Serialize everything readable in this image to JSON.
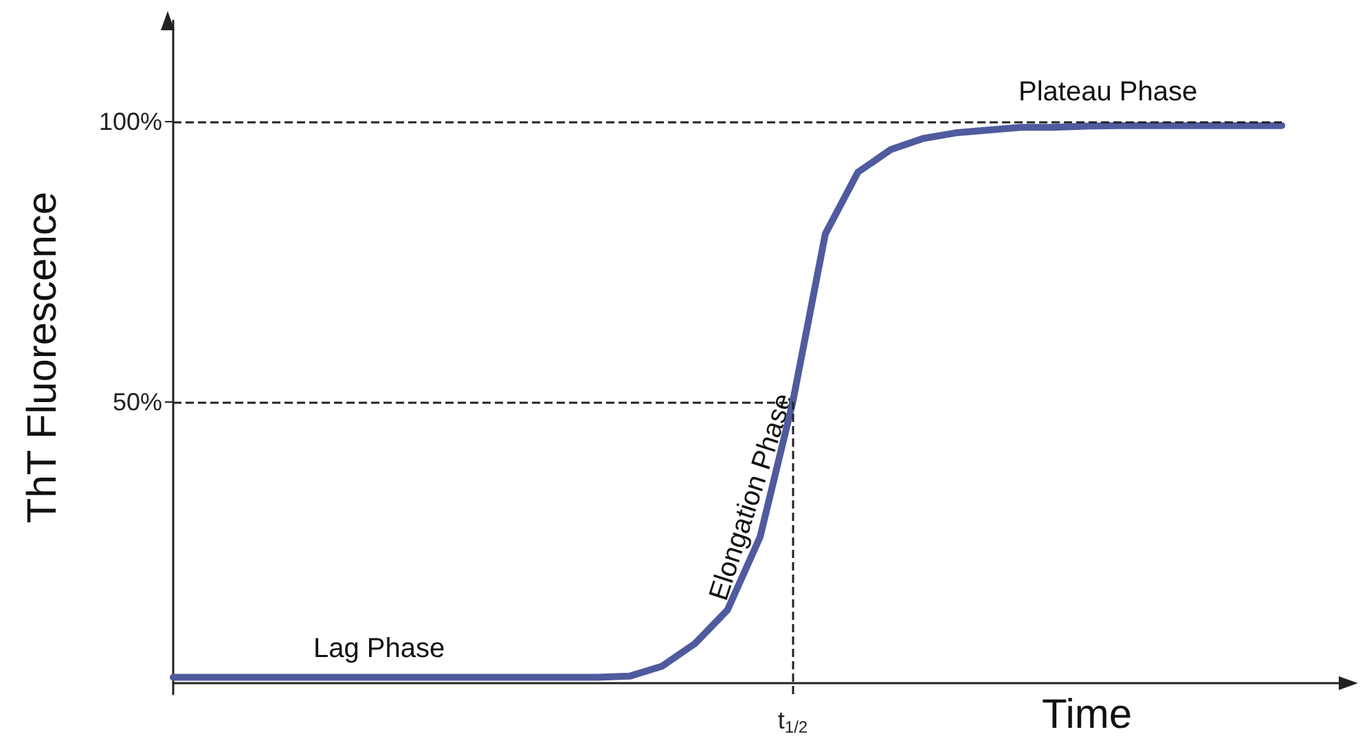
{
  "chart_data": {
    "type": "line",
    "xlabel": "Time",
    "ylabel": "ThT Fluorescence",
    "categories": [
      null,
      null,
      null,
      null,
      null,
      null,
      null,
      null,
      null,
      null,
      null,
      null,
      null,
      null,
      null,
      null,
      null,
      null,
      null,
      "t$_{1/2}$",
      null,
      null,
      null,
      null,
      null,
      null,
      null,
      null,
      null,
      null,
      null,
      null,
      null,
      null,
      null,
      null,
      null
    ],
    "series": [
      {
        "color": "#4f5b9e",
        "values": [
          1,
          1,
          1,
          1,
          1,
          1,
          1,
          1,
          1,
          1,
          1,
          1,
          1,
          1,
          1.2,
          3,
          7,
          13,
          26,
          50,
          80,
          91,
          95,
          97,
          98,
          98.5,
          99,
          99,
          99.2,
          99.3,
          99.3,
          99.3,
          99.3,
          99.3,
          99.3,
          null,
          null
        ]
      }
    ],
    "ylim": [
      -2,
      118
    ],
    "yticks": [
      {
        "value": 50,
        "label": "50%"
      },
      {
        "value": 100,
        "label": "100%"
      }
    ],
    "ref_lines": [
      {
        "axis": "y",
        "value": 100,
        "label": null
      },
      {
        "axis": "y",
        "value": 50,
        "label": null
      },
      {
        "axis": "x",
        "value": "t$_{1/2}$",
        "label": null
      }
    ],
    "annotations": [
      "Lag Phase",
      "Elongation Phase",
      "Plateau Phase"
    ],
    "grid": false,
    "marker": "none",
    "line_style": "solid"
  }
}
